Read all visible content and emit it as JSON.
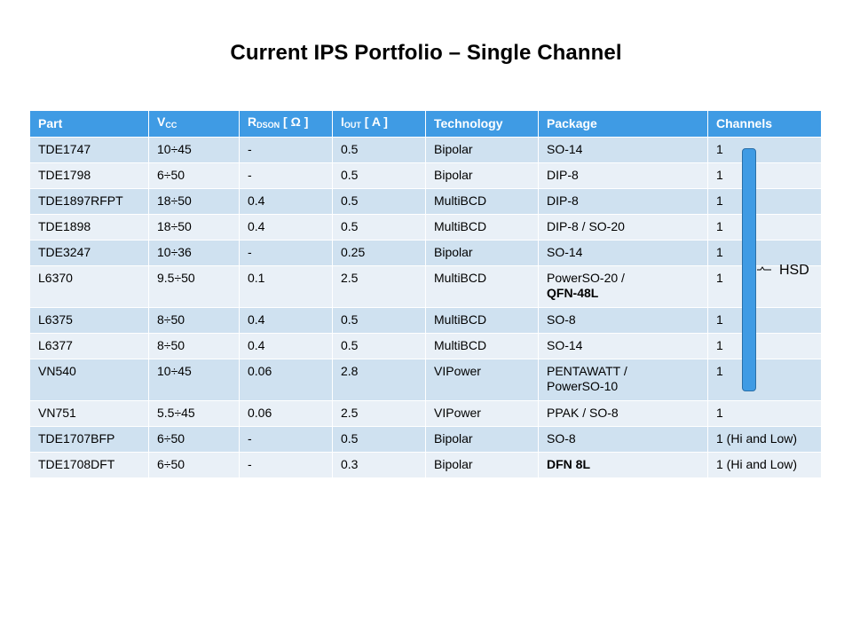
{
  "slide": {
    "title": "Current IPS Portfolio – Single Channel",
    "brace_label": "HSD"
  },
  "table": {
    "headers": {
      "part": "Part",
      "vcc_main": "V",
      "vcc_sub": "CC",
      "rdson_main": "R",
      "rdson_sub": "DSON",
      "rdson_unit": " [ Ω ]",
      "iout_main": "I",
      "iout_sub": "OUT",
      "iout_unit": " [ A ]",
      "technology": "Technology",
      "package": "Package",
      "channels": "Channels"
    },
    "rows": [
      {
        "part": "TDE1747",
        "vcc": "10÷45",
        "rdson": "-",
        "iout": "0.5",
        "technology": "Bipolar",
        "package": "SO-14",
        "package2": "",
        "channels": "1"
      },
      {
        "part": "TDE1798",
        "vcc": "6÷50",
        "rdson": "-",
        "iout": "0.5",
        "technology": "Bipolar",
        "package": "DIP-8",
        "package2": "",
        "channels": "1"
      },
      {
        "part": "TDE1897RFPT",
        "vcc": "18÷50",
        "rdson": "0.4",
        "iout": "0.5",
        "technology": "MultiBCD",
        "package": "DIP-8",
        "package2": "",
        "channels": "1"
      },
      {
        "part": "TDE1898",
        "vcc": "18÷50",
        "rdson": "0.4",
        "iout": "0.5",
        "technology": "MultiBCD",
        "package": "DIP-8 / SO-20",
        "package2": "",
        "channels": "1"
      },
      {
        "part": "TDE3247",
        "vcc": "10÷36",
        "rdson": "-",
        "iout": "0.25",
        "technology": "Bipolar",
        "package": "SO-14",
        "package2": "",
        "channels": "1"
      },
      {
        "part": "L6370",
        "vcc": "9.5÷50",
        "rdson": "0.1",
        "iout": "2.5",
        "technology": "MultiBCD",
        "package": "PowerSO-20 /",
        "package2": "QFN-48L",
        "channels": "1"
      },
      {
        "part": "L6375",
        "vcc": "8÷50",
        "rdson": "0.4",
        "iout": "0.5",
        "technology": "MultiBCD",
        "package": "SO-8",
        "package2": "",
        "channels": "1"
      },
      {
        "part": "L6377",
        "vcc": "8÷50",
        "rdson": "0.4",
        "iout": "0.5",
        "technology": "MultiBCD",
        "package": "SO-14",
        "package2": "",
        "channels": "1"
      },
      {
        "part": "VN540",
        "vcc": "10÷45",
        "rdson": "0.06",
        "iout": "2.8",
        "technology": "VIPower",
        "package": "PENTAWATT /",
        "package2": "PowerSO-10",
        "channels": "1"
      },
      {
        "part": "VN751",
        "vcc": "5.5÷45",
        "rdson": "0.06",
        "iout": "2.5",
        "technology": "VIPower",
        "package": "PPAK / SO-8",
        "package2": "",
        "channels": "1"
      },
      {
        "part": "TDE1707BFP",
        "vcc": "6÷50",
        "rdson": "-",
        "iout": "0.5",
        "technology": "Bipolar",
        "package": "SO-8",
        "package2": "",
        "channels": "1 (Hi and Low)"
      },
      {
        "part": "TDE1708DFT",
        "vcc": "6÷50",
        "rdson": "-",
        "iout": "0.3",
        "technology": "Bipolar",
        "package": "DFN 8L",
        "package2": "",
        "channels": "1 (Hi and Low)"
      }
    ]
  }
}
